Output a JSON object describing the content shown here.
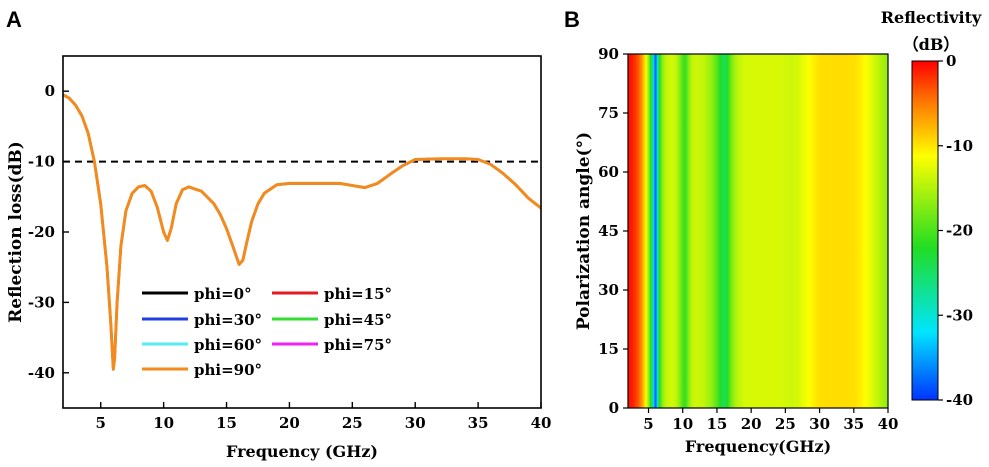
{
  "panels": {
    "a": "A",
    "b": "B"
  },
  "chart_data": [
    {
      "type": "line",
      "xlabel": "Frequency (GHz)",
      "ylabel": "Reflection loss(dB)",
      "xlim": [
        2,
        40
      ],
      "ylim": [
        -45,
        5
      ],
      "xticks": [
        {
          "v": 5,
          "label": "5"
        },
        {
          "v": 10,
          "label": "10"
        },
        {
          "v": 15,
          "label": "15"
        },
        {
          "v": 20,
          "label": "20"
        },
        {
          "v": 25,
          "label": "25"
        },
        {
          "v": 30,
          "label": "30"
        },
        {
          "v": 35,
          "label": "35"
        },
        {
          "v": 40,
          "label": "40"
        }
      ],
      "yticks": [
        {
          "v": 0,
          "label": "0"
        },
        {
          "v": -10,
          "label": "-10"
        },
        {
          "v": -20,
          "label": "-20"
        },
        {
          "v": -30,
          "label": "-30"
        },
        {
          "v": -40,
          "label": "-40"
        }
      ],
      "reference_line": {
        "y": -10,
        "style": "dashed",
        "color": "#000000"
      },
      "legend": [
        {
          "name": "phi=0°",
          "color": "#000000"
        },
        {
          "name": "phi=15°",
          "color": "#e41a1c"
        },
        {
          "name": "phi=30°",
          "color": "#1f3fe0"
        },
        {
          "name": "phi=45°",
          "color": "#33dd33"
        },
        {
          "name": "phi=60°",
          "color": "#55eeee"
        },
        {
          "name": "phi=75°",
          "color": "#ee22ee"
        },
        {
          "name": "phi=90°",
          "color": "#f28a1e"
        }
      ],
      "series_note": "All polarization angles overlap; curve drawn once in phi=90° color",
      "x": [
        2,
        2.5,
        3,
        3.5,
        4,
        4.5,
        5,
        5.5,
        5.8,
        6.0,
        6.1,
        6.3,
        6.6,
        7,
        7.5,
        8,
        8.5,
        9,
        9.5,
        10,
        10.3,
        10.6,
        11,
        11.5,
        12,
        13,
        14,
        14.5,
        15,
        15.5,
        16,
        16.3,
        16.6,
        17,
        17.5,
        18,
        19,
        20,
        22,
        24,
        25,
        26,
        27,
        28,
        29,
        30,
        32,
        34,
        35,
        36,
        37,
        38,
        39,
        40
      ],
      "y": [
        -0.5,
        -1,
        -2,
        -3.5,
        -6,
        -10,
        -16,
        -25,
        -33,
        -39.5,
        -38,
        -30,
        -22,
        -17,
        -14.5,
        -13.6,
        -13.4,
        -14.2,
        -16.5,
        -20,
        -21.2,
        -19.5,
        -16,
        -14,
        -13.6,
        -14.2,
        -16,
        -17.5,
        -19.5,
        -22,
        -24.6,
        -24,
        -21.5,
        -18.5,
        -16,
        -14.5,
        -13.3,
        -13.1,
        -13.1,
        -13.1,
        -13.4,
        -13.7,
        -13.1,
        -11.8,
        -10.6,
        -9.7,
        -9.6,
        -9.6,
        -9.7,
        -10.4,
        -11.7,
        -13.3,
        -15.2,
        -16.6
      ]
    },
    {
      "type": "heatmap",
      "xlabel": "Frequency(GHz)",
      "ylabel": "Polarization angle(°)",
      "xlim": [
        2,
        40
      ],
      "ylim": [
        0,
        90
      ],
      "xticks": [
        {
          "v": 5,
          "label": "5"
        },
        {
          "v": 10,
          "label": "10"
        },
        {
          "v": 15,
          "label": "15"
        },
        {
          "v": 20,
          "label": "20"
        },
        {
          "v": 25,
          "label": "25"
        },
        {
          "v": 30,
          "label": "30"
        },
        {
          "v": 35,
          "label": "35"
        },
        {
          "v": 40,
          "label": "40"
        }
      ],
      "yticks": [
        {
          "v": 0,
          "label": "0"
        },
        {
          "v": 15,
          "label": "15"
        },
        {
          "v": 30,
          "label": "30"
        },
        {
          "v": 45,
          "label": "45"
        },
        {
          "v": 60,
          "label": "60"
        },
        {
          "v": 75,
          "label": "75"
        },
        {
          "v": 90,
          "label": "90"
        }
      ],
      "colorbar": {
        "title_line1": "Reflectivity",
        "title_line2": "（dB）",
        "range": [
          -40,
          0
        ],
        "ticks": [
          {
            "v": 0,
            "label": "0"
          },
          {
            "v": -10,
            "label": "-10"
          },
          {
            "v": -20,
            "label": "-20"
          },
          {
            "v": -30,
            "label": "-30"
          },
          {
            "v": -40,
            "label": "-40"
          }
        ],
        "colors": [
          "#0033ff",
          "#00e5ff",
          "#22dd22",
          "#ffff00",
          "#ff7700",
          "#ff0000"
        ]
      },
      "note": "Reflectivity is independent of polarization angle; color depends only on frequency (same values as panel A curve)"
    }
  ]
}
